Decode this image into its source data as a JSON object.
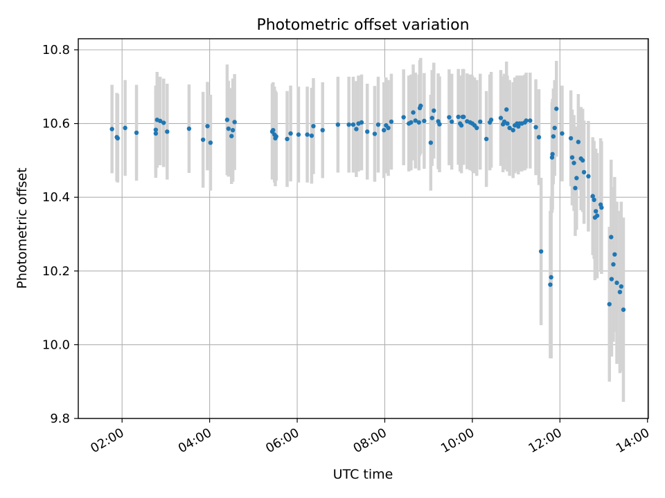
{
  "chart_data": {
    "type": "scatter",
    "title": "Photometric offset variation",
    "xlabel": "UTC time",
    "ylabel": "Photometric offset",
    "xlim": [
      1.0,
      14.02
    ],
    "ylim": [
      9.8,
      10.83
    ],
    "xtick_values": [
      2,
      4,
      6,
      8,
      10,
      12,
      14
    ],
    "xticks": [
      "02:00",
      "04:00",
      "06:00",
      "08:00",
      "10:00",
      "12:00",
      "14:00"
    ],
    "yticks": [
      9.8,
      10.0,
      10.2,
      10.4,
      10.6,
      10.8
    ],
    "ytick_labels": [
      "9.8",
      "10.0",
      "10.2",
      "10.4",
      "10.6",
      "10.8"
    ],
    "grid": true,
    "point_color": "#1f77b4",
    "errorbar_color": "#d3d3d3",
    "series": [
      {
        "x_hours": [
          1.77,
          1.88,
          1.9,
          2.07,
          2.33,
          2.77,
          2.77,
          2.8,
          2.87,
          2.95,
          3.03,
          3.53,
          3.85,
          3.95,
          4.02,
          4.4,
          4.43,
          4.5,
          4.53,
          4.57,
          5.43,
          5.45,
          5.48,
          5.5,
          5.52,
          5.77,
          5.85,
          6.03,
          6.23,
          6.33,
          6.37,
          6.58,
          6.93,
          7.18,
          7.28,
          7.35,
          7.4,
          7.47,
          7.6,
          7.77,
          7.85,
          7.98,
          8.03,
          8.08,
          8.15,
          8.43,
          8.55,
          8.6,
          8.65,
          8.7,
          8.78,
          8.8,
          8.82,
          8.9,
          9.05,
          9.08,
          9.12,
          9.22,
          9.25,
          9.47,
          9.53,
          9.68,
          9.72,
          9.75,
          9.78,
          9.8,
          9.88,
          9.95,
          10.0,
          10.05,
          10.1,
          10.18,
          10.32,
          10.4,
          10.43,
          10.65,
          10.7,
          10.73,
          10.78,
          10.8,
          10.85,
          10.93,
          10.97,
          11.02,
          11.05,
          11.08,
          11.13,
          11.2,
          11.23,
          11.32,
          11.45,
          11.52,
          11.57,
          11.78,
          11.8,
          11.82,
          11.83,
          11.85,
          11.88,
          11.92,
          12.05,
          12.25,
          12.28,
          12.32,
          12.35,
          12.38,
          12.42,
          12.48,
          12.52,
          12.55,
          12.65,
          12.75,
          12.78,
          12.8,
          12.82,
          12.85,
          12.93,
          12.95,
          13.13,
          13.17,
          13.18,
          13.22,
          13.25,
          13.3,
          13.37,
          13.4,
          13.45
        ],
        "y": [
          10.585,
          10.563,
          10.56,
          10.588,
          10.575,
          10.583,
          10.573,
          10.61,
          10.607,
          10.602,
          10.578,
          10.586,
          10.556,
          10.593,
          10.548,
          10.61,
          10.586,
          10.566,
          10.582,
          10.604,
          10.578,
          10.582,
          10.57,
          10.56,
          10.565,
          10.558,
          10.573,
          10.57,
          10.57,
          10.567,
          10.593,
          10.582,
          10.597,
          10.597,
          10.597,
          10.585,
          10.6,
          10.603,
          10.578,
          10.572,
          10.597,
          10.582,
          10.595,
          10.588,
          10.605,
          10.617,
          10.6,
          10.603,
          10.63,
          10.608,
          10.603,
          10.642,
          10.648,
          10.607,
          10.548,
          10.615,
          10.635,
          10.606,
          10.598,
          10.617,
          10.605,
          10.618,
          10.6,
          10.595,
          10.618,
          10.618,
          10.606,
          10.603,
          10.6,
          10.595,
          10.588,
          10.605,
          10.558,
          10.603,
          10.61,
          10.615,
          10.598,
          10.605,
          10.638,
          10.6,
          10.588,
          10.582,
          10.595,
          10.6,
          10.592,
          10.6,
          10.6,
          10.603,
          10.608,
          10.608,
          10.59,
          10.563,
          10.253,
          10.163,
          10.183,
          10.508,
          10.517,
          10.565,
          10.588,
          10.64,
          10.573,
          10.56,
          10.508,
          10.493,
          10.425,
          10.452,
          10.55,
          10.505,
          10.5,
          10.468,
          10.457,
          10.403,
          10.393,
          10.345,
          10.362,
          10.35,
          10.38,
          10.372,
          10.11,
          10.292,
          10.178,
          10.218,
          10.245,
          10.168,
          10.143,
          10.158,
          10.095
        ],
        "yerr": [
          0.12,
          0.12,
          0.12,
          0.13,
          0.13,
          0.12,
          0.12,
          0.13,
          0.12,
          0.12,
          0.13,
          0.12,
          0.13,
          0.12,
          0.13,
          0.15,
          0.13,
          0.13,
          0.14,
          0.13,
          0.13,
          0.13,
          0.13,
          0.13,
          0.12,
          0.13,
          0.13,
          0.13,
          0.13,
          0.13,
          0.13,
          0.13,
          0.13,
          0.13,
          0.13,
          0.13,
          0.13,
          0.13,
          0.13,
          0.13,
          0.13,
          0.13,
          0.13,
          0.13,
          0.13,
          0.13,
          0.13,
          0.13,
          0.13,
          0.13,
          0.13,
          0.13,
          0.13,
          0.13,
          0.13,
          0.13,
          0.13,
          0.13,
          0.13,
          0.13,
          0.13,
          0.13,
          0.13,
          0.13,
          0.13,
          0.13,
          0.13,
          0.13,
          0.13,
          0.13,
          0.13,
          0.13,
          0.13,
          0.13,
          0.13,
          0.13,
          0.13,
          0.13,
          0.13,
          0.13,
          0.13,
          0.13,
          0.13,
          0.13,
          0.13,
          0.13,
          0.13,
          0.13,
          0.13,
          0.13,
          0.13,
          0.13,
          0.2,
          0.2,
          0.22,
          0.15,
          0.15,
          0.13,
          0.13,
          0.13,
          0.13,
          0.13,
          0.13,
          0.13,
          0.13,
          0.14,
          0.13,
          0.14,
          0.14,
          0.14,
          0.15,
          0.16,
          0.16,
          0.17,
          0.17,
          0.17,
          0.18,
          0.18,
          0.21,
          0.21,
          0.21,
          0.21,
          0.21,
          0.22,
          0.22,
          0.23,
          0.25
        ]
      }
    ]
  }
}
